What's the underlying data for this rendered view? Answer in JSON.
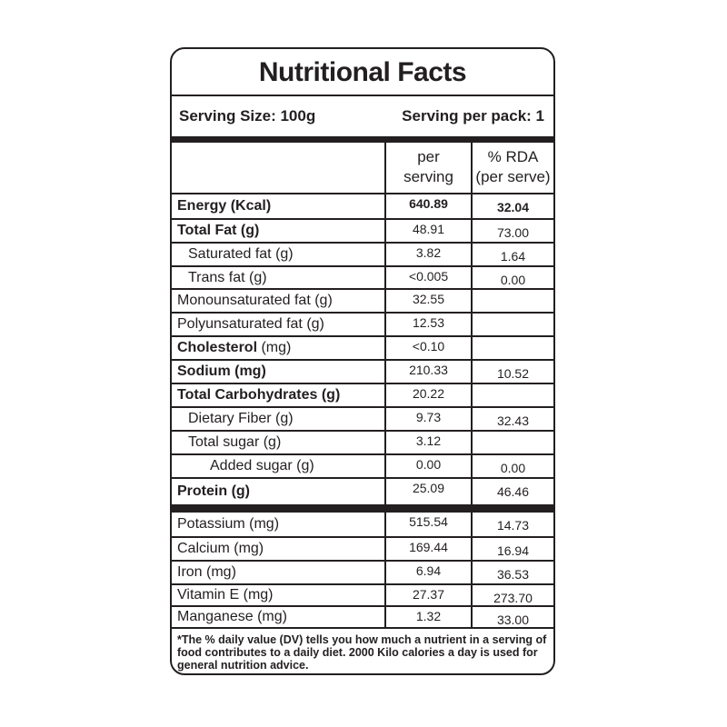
{
  "title": "Nutritional Facts",
  "serving_size": "Serving Size: 100g",
  "serving_per_pack": "Serving per pack: 1",
  "header": {
    "col2_line1": "per",
    "col2_line2": "serving",
    "col3_line1": "% RDA",
    "col3_line2": "(per serve)"
  },
  "main_rows": [
    {
      "bold": "Energy (Kcal)",
      "normal": "",
      "indent": 0,
      "value": "640.89",
      "rda": "32.04",
      "value_bold": true
    },
    {
      "bold": "Total Fat (g)",
      "normal": "",
      "indent": 0,
      "value": "48.91",
      "rda": "73.00"
    },
    {
      "bold": "",
      "normal": "Saturated fat (g)",
      "indent": 1,
      "value": "3.82",
      "rda": "1.64"
    },
    {
      "bold": "",
      "normal": "Trans fat (g)",
      "indent": 1,
      "value": "<0.005",
      "rda": "0.00"
    },
    {
      "bold": "",
      "normal": "Monounsaturated fat (g)",
      "indent": 0,
      "value": "32.55",
      "rda": ""
    },
    {
      "bold": "",
      "normal": "Polyunsaturated fat (g)",
      "indent": 0,
      "value": "12.53",
      "rda": ""
    },
    {
      "bold": "Cholesterol",
      "normal": " (mg)",
      "indent": 0,
      "value": "<0.10",
      "rda": ""
    },
    {
      "bold": "Sodium (mg)",
      "normal": "",
      "indent": 0,
      "value": "210.33",
      "rda": "10.52"
    },
    {
      "bold": "Total Carbohydrates (g)",
      "normal": "",
      "indent": 0,
      "value": "20.22",
      "rda": ""
    },
    {
      "bold": "",
      "normal": "Dietary Fiber (g)",
      "indent": 1,
      "value": "9.73",
      "rda": "32.43"
    },
    {
      "bold": "",
      "normal": "Total sugar (g)",
      "indent": 1,
      "value": "3.12",
      "rda": ""
    },
    {
      "bold": "",
      "normal": "Added sugar (g)",
      "indent": 2,
      "value": "0.00",
      "rda": "0.00"
    },
    {
      "bold": "Protein (g)",
      "normal": "",
      "indent": 0,
      "value": "25.09",
      "rda": "46.46"
    }
  ],
  "mineral_rows": [
    {
      "bold": "",
      "normal": "Potassium (mg)",
      "indent": 0,
      "value": "515.54",
      "rda": "14.73"
    },
    {
      "bold": "",
      "normal": "Calcium (mg)",
      "indent": 0,
      "value": "169.44",
      "rda": "16.94"
    },
    {
      "bold": "",
      "normal": "Iron (mg)",
      "indent": 0,
      "value": "6.94",
      "rda": "36.53"
    },
    {
      "bold": "",
      "normal": "Vitamin E (mg)",
      "indent": 0,
      "value": "27.37",
      "rda": "273.70"
    },
    {
      "bold": "",
      "normal": "Manganese (mg)",
      "indent": 0,
      "value": "1.32",
      "rda": "33.00"
    }
  ],
  "footnote": "*The % daily value (DV) tells you how much a nutrient in a serving of food contributes to a daily diet. 2000 Kilo calories a day is used for general nutrition advice."
}
